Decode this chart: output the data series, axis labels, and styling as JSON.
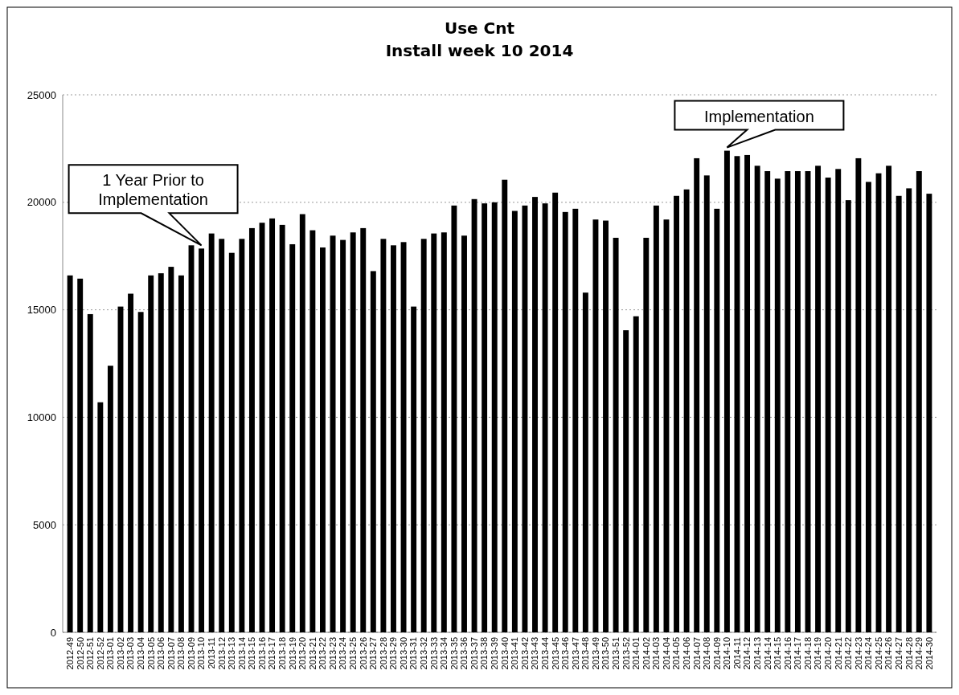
{
  "chart_data": {
    "type": "bar",
    "title": "Use Cnt",
    "subtitle": "Install week 10 2014",
    "categories": [
      "2012-49",
      "2012-50",
      "2012-51",
      "2012-52",
      "2013-01",
      "2013-02",
      "2013-03",
      "2013-04",
      "2013-05",
      "2013-06",
      "2013-07",
      "2013-08",
      "2013-09",
      "2013-10",
      "2013-11",
      "2013-12",
      "2013-13",
      "2013-14",
      "2013-15",
      "2013-16",
      "2013-17",
      "2013-18",
      "2013-19",
      "2013-20",
      "2013-21",
      "2013-22",
      "2013-23",
      "2013-24",
      "2013-25",
      "2013-26",
      "2013-27",
      "2013-28",
      "2013-29",
      "2013-30",
      "2013-31",
      "2013-32",
      "2013-33",
      "2013-34",
      "2013-35",
      "2013-36",
      "2013-37",
      "2013-38",
      "2013-39",
      "2013-40",
      "2013-41",
      "2013-42",
      "2013-43",
      "2013-44",
      "2013-45",
      "2013-46",
      "2013-47",
      "2013-48",
      "2013-49",
      "2013-50",
      "2013-51",
      "2013-52",
      "2014-01",
      "2014-02",
      "2014-03",
      "2014-04",
      "2014-05",
      "2014-06",
      "2014-07",
      "2014-08",
      "2014-09",
      "2014-10",
      "2014-11",
      "2014-12",
      "2014-13",
      "2014-14",
      "2014-15",
      "2014-16",
      "2014-17",
      "2014-18",
      "2014-19",
      "2014-20",
      "2014-21",
      "2014-22",
      "2014-23",
      "2014-24",
      "2014-25",
      "2014-26",
      "2014-27",
      "2014-28",
      "2014-29",
      "2014-30"
    ],
    "values": [
      16600,
      16450,
      14800,
      10700,
      12400,
      15150,
      15750,
      14900,
      16600,
      16700,
      17000,
      16600,
      18000,
      17850,
      18550,
      18300,
      17650,
      18300,
      18800,
      19050,
      19250,
      18950,
      18050,
      19450,
      18700,
      17900,
      18450,
      18250,
      18600,
      18800,
      16800,
      18300,
      18000,
      18150,
      15150,
      18300,
      18550,
      18600,
      19850,
      18450,
      20150,
      19950,
      20000,
      21050,
      19600,
      19850,
      20250,
      19950,
      20450,
      19550,
      19700,
      15800,
      19200,
      19150,
      18350,
      14050,
      14700,
      18350,
      19850,
      19200,
      20300,
      20600,
      22050,
      21250,
      19700,
      22400,
      22150,
      22200,
      21700,
      21450,
      21100,
      21450,
      21450,
      21450,
      21700,
      21150,
      21550,
      20100,
      22050,
      20950,
      21350,
      21700,
      20300,
      20650,
      21450,
      20400
    ],
    "color": "#000000",
    "ylim": [
      0,
      25000
    ],
    "yticks": [
      0,
      5000,
      10000,
      15000,
      20000,
      25000
    ],
    "grid": "y",
    "annotations": [
      {
        "text": "1 Year Prior to Implementation",
        "x": "2013-10",
        "y": 17850
      },
      {
        "text": "Implementation",
        "x": "2014-10",
        "y": 22400
      }
    ]
  }
}
